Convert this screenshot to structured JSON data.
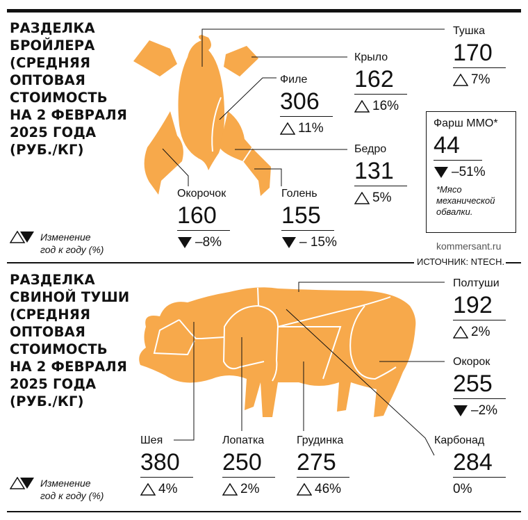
{
  "colors": {
    "meat": "#F7A94B",
    "ink": "#111111"
  },
  "broiler": {
    "title": "РАЗДЕЛКА\nБРОЙЛЕРА\n(СРЕДНЯЯ\nОПТОВАЯ\nСТОИМОСТЬ\nНА 2 ФЕВРАЛЯ\n2025 ГОДА\n(РУБ./КГ)",
    "items": [
      {
        "label": "Тушка",
        "price": "170",
        "direction": "up",
        "change": "7%"
      },
      {
        "label": "Крыло",
        "price": "162",
        "direction": "up",
        "change": "16%"
      },
      {
        "label": "Филе",
        "price": "306",
        "direction": "up",
        "change": "11%"
      },
      {
        "label": "Бедро",
        "price": "131",
        "direction": "up",
        "change": "5%"
      },
      {
        "label": "Окорочок",
        "price": "160",
        "direction": "down",
        "change": "–8%"
      },
      {
        "label": "Голень",
        "price": "155",
        "direction": "down",
        "change": "– 15%"
      }
    ],
    "mince_box": {
      "label": "Фарш ММО*",
      "price": "44",
      "direction": "down",
      "change": "–51%",
      "footnote": "*Мясо\nмеханической\nобвалки."
    },
    "legend": "Изменение\nгод к году (%)"
  },
  "source": {
    "site": "kommersant.ru",
    "text": "ИСТОЧНИК: NTECH."
  },
  "pork": {
    "title": "РАЗДЕЛКА\nСВИНОЙ ТУШИ\n(СРЕДНЯЯ\nОПТОВАЯ\nСТОИМОСТЬ\nНА 2 ФЕВРАЛЯ\n2025 ГОДА\n(РУБ./КГ)",
    "items": [
      {
        "label": "Полтуши",
        "price": "192",
        "direction": "up",
        "change": "2%"
      },
      {
        "label": "Окорок",
        "price": "255",
        "direction": "down",
        "change": "–2%"
      },
      {
        "label": "Карбонад",
        "price": "284",
        "direction": "none",
        "change": "0%"
      },
      {
        "label": "Шея",
        "price": "380",
        "direction": "up",
        "change": "4%"
      },
      {
        "label": "Лопатка",
        "price": "250",
        "direction": "up",
        "change": "2%"
      },
      {
        "label": "Грудинка",
        "price": "275",
        "direction": "up",
        "change": "46%"
      }
    ],
    "legend": "Изменение\nгод к году (%)"
  }
}
